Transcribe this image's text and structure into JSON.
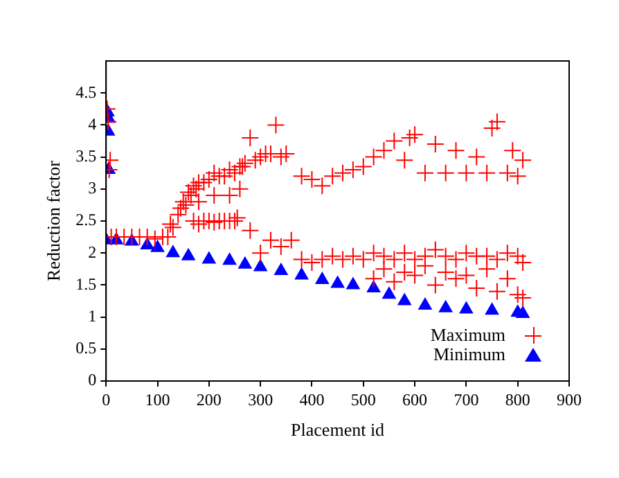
{
  "chart_data": {
    "type": "scatter",
    "xlabel": "Placement id",
    "ylabel": "Reduction factor",
    "xlim": [
      0,
      900
    ],
    "xticks": [
      0,
      100,
      200,
      300,
      400,
      500,
      600,
      700,
      800,
      900
    ],
    "ylim": [
      0,
      5
    ],
    "yticks": [
      0,
      0.5,
      1,
      1.5,
      2,
      2.5,
      3,
      3.5,
      4,
      4.5
    ],
    "grid": false,
    "legend": "bottom right",
    "series": [
      {
        "name": "Maximum",
        "color": "#ff0000",
        "marker": "cross",
        "x": [
          2,
          4,
          6,
          8,
          10,
          20,
          35,
          50,
          65,
          80,
          95,
          110,
          120,
          125,
          130,
          140,
          145,
          150,
          155,
          160,
          165,
          170,
          175,
          180,
          190,
          200,
          210,
          220,
          230,
          240,
          250,
          260,
          170,
          180,
          190,
          200,
          210,
          220,
          230,
          240,
          250,
          255,
          265,
          270,
          280,
          290,
          300,
          310,
          320,
          330,
          340,
          350,
          180,
          210,
          240,
          260,
          280,
          300,
          320,
          340,
          360,
          380,
          400,
          420,
          440,
          460,
          480,
          500,
          520,
          540,
          560,
          580,
          600,
          620,
          640,
          660,
          680,
          700,
          720,
          740,
          760,
          780,
          800,
          810,
          380,
          400,
          420,
          440,
          460,
          480,
          500,
          520,
          540,
          560,
          580,
          590,
          600,
          620,
          640,
          660,
          680,
          700,
          720,
          740,
          750,
          760,
          780,
          790,
          800,
          810,
          520,
          560,
          600,
          640,
          680,
          720,
          760,
          800,
          540,
          580,
          620,
          660,
          700,
          740,
          780,
          810
        ],
        "values": [
          4.25,
          4.05,
          3.3,
          3.45,
          2.25,
          2.25,
          2.25,
          2.25,
          2.25,
          2.25,
          2.22,
          2.25,
          2.25,
          2.45,
          2.4,
          2.6,
          2.7,
          2.8,
          2.75,
          2.95,
          2.9,
          3.05,
          3.0,
          3.1,
          3.1,
          3.15,
          3.25,
          3.2,
          3.2,
          3.3,
          3.25,
          3.35,
          2.5,
          2.45,
          2.5,
          2.5,
          2.48,
          2.5,
          2.5,
          2.5,
          2.5,
          2.55,
          3.35,
          3.4,
          3.8,
          3.45,
          3.5,
          3.55,
          3.55,
          4.0,
          3.5,
          3.55,
          2.8,
          2.9,
          2.9,
          3.0,
          2.35,
          2.0,
          2.2,
          2.1,
          2.2,
          1.9,
          1.85,
          1.9,
          1.95,
          1.9,
          1.95,
          1.9,
          2.0,
          1.95,
          1.9,
          2.0,
          1.9,
          1.95,
          2.05,
          1.95,
          1.9,
          2.0,
          1.95,
          1.95,
          1.9,
          2.0,
          1.95,
          1.85,
          3.2,
          3.15,
          3.05,
          3.2,
          3.25,
          3.3,
          3.35,
          3.5,
          3.6,
          3.75,
          3.45,
          3.8,
          3.85,
          3.25,
          3.7,
          3.25,
          3.6,
          3.25,
          3.5,
          3.25,
          3.95,
          4.05,
          3.25,
          3.6,
          3.2,
          3.45,
          1.6,
          1.55,
          1.65,
          1.5,
          1.6,
          1.45,
          1.4,
          1.35,
          1.75,
          1.7,
          1.8,
          1.7,
          1.65,
          1.75,
          1.6,
          1.3
        ]
      },
      {
        "name": "Minimum",
        "color": "#0000ff",
        "marker": "triangle",
        "x": [
          3,
          5,
          4,
          5,
          0,
          20,
          50,
          80,
          100,
          130,
          160,
          200,
          240,
          270,
          300,
          340,
          380,
          420,
          450,
          480,
          520,
          550,
          580,
          620,
          660,
          700,
          750,
          800,
          810
        ],
        "values": [
          4.2,
          4.1,
          3.9,
          3.3,
          2.2,
          2.2,
          2.18,
          2.12,
          2.08,
          2.0,
          1.95,
          1.9,
          1.88,
          1.82,
          1.78,
          1.72,
          1.65,
          1.58,
          1.52,
          1.5,
          1.45,
          1.35,
          1.25,
          1.18,
          1.14,
          1.12,
          1.1,
          1.07,
          1.05
        ]
      }
    ]
  }
}
